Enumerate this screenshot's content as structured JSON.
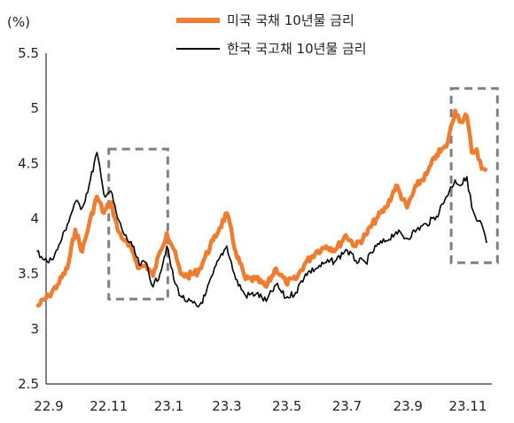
{
  "chart_data": {
    "type": "line",
    "unit_label": "(%)",
    "x_ticks": [
      "22.9",
      "22.11",
      "23.1",
      "23.3",
      "23.5",
      "23.7",
      "23.9",
      "23.11"
    ],
    "y_ticks": [
      "2.5",
      "3",
      "3.5",
      "4",
      "4.5",
      "5",
      "5.5"
    ],
    "ylim": [
      2.5,
      5.5
    ],
    "legend_position": "top-right",
    "series": [
      {
        "name": "미국 국채 10년물 금리",
        "color": "#ED7D31",
        "points": [
          [
            "22.8.20",
            3.2
          ],
          [
            "22.9.1",
            3.3
          ],
          [
            "22.9.10",
            3.4
          ],
          [
            "22.9.20",
            3.55
          ],
          [
            "22.9.28",
            3.9
          ],
          [
            "22.10.5",
            3.7
          ],
          [
            "22.10.12",
            3.95
          ],
          [
            "22.10.20",
            4.2
          ],
          [
            "22.10.27",
            4.05
          ],
          [
            "22.11.3",
            4.15
          ],
          [
            "22.11.10",
            3.9
          ],
          [
            "22.11.17",
            3.8
          ],
          [
            "22.11.25",
            3.7
          ],
          [
            "22.12.2",
            3.55
          ],
          [
            "22.12.9",
            3.58
          ],
          [
            "22.12.16",
            3.48
          ],
          [
            "22.12.23",
            3.7
          ],
          [
            "22.12.30",
            3.87
          ],
          [
            "23.1.6",
            3.72
          ],
          [
            "23.1.13",
            3.5
          ],
          [
            "23.1.20",
            3.48
          ],
          [
            "23.1.31",
            3.52
          ],
          [
            "23.2.7",
            3.65
          ],
          [
            "23.2.15",
            3.8
          ],
          [
            "23.2.22",
            3.92
          ],
          [
            "23.3.1",
            4.05
          ],
          [
            "23.3.10",
            3.7
          ],
          [
            "23.3.20",
            3.45
          ],
          [
            "23.3.31",
            3.45
          ],
          [
            "23.4.10",
            3.38
          ],
          [
            "23.4.20",
            3.55
          ],
          [
            "23.4.30",
            3.42
          ],
          [
            "23.5.10",
            3.45
          ],
          [
            "23.5.20",
            3.6
          ],
          [
            "23.5.31",
            3.7
          ],
          [
            "23.6.10",
            3.75
          ],
          [
            "23.6.20",
            3.72
          ],
          [
            "23.6.30",
            3.85
          ],
          [
            "23.7.10",
            3.75
          ],
          [
            "23.7.20",
            3.85
          ],
          [
            "23.7.31",
            4.0
          ],
          [
            "23.8.10",
            4.1
          ],
          [
            "23.8.20",
            4.3
          ],
          [
            "23.8.31",
            4.1
          ],
          [
            "23.9.10",
            4.3
          ],
          [
            "23.9.20",
            4.4
          ],
          [
            "23.9.30",
            4.58
          ],
          [
            "23.10.10",
            4.65
          ],
          [
            "23.10.19",
            4.98
          ],
          [
            "23.10.25",
            4.88
          ],
          [
            "23.10.31",
            4.93
          ],
          [
            "23.11.5",
            4.6
          ],
          [
            "23.11.10",
            4.63
          ],
          [
            "23.11.15",
            4.45
          ],
          [
            "23.11.20",
            4.43
          ]
        ]
      },
      {
        "name": "한국 국고채 10년물 금리",
        "color": "#000000",
        "points": [
          [
            "22.8.20",
            3.7
          ],
          [
            "22.9.1",
            3.6
          ],
          [
            "22.9.10",
            3.72
          ],
          [
            "22.9.20",
            3.95
          ],
          [
            "22.9.28",
            4.15
          ],
          [
            "22.10.5",
            4.1
          ],
          [
            "22.10.12",
            4.3
          ],
          [
            "22.10.20",
            4.6
          ],
          [
            "22.10.27",
            4.22
          ],
          [
            "22.11.3",
            4.25
          ],
          [
            "22.11.10",
            4.0
          ],
          [
            "22.11.17",
            3.85
          ],
          [
            "22.11.25",
            3.75
          ],
          [
            "22.12.2",
            3.58
          ],
          [
            "22.12.9",
            3.6
          ],
          [
            "22.12.16",
            3.38
          ],
          [
            "22.12.23",
            3.5
          ],
          [
            "22.12.30",
            3.75
          ],
          [
            "23.1.6",
            3.45
          ],
          [
            "23.1.13",
            3.3
          ],
          [
            "23.1.20",
            3.25
          ],
          [
            "23.1.31",
            3.2
          ],
          [
            "23.2.7",
            3.3
          ],
          [
            "23.2.15",
            3.5
          ],
          [
            "23.2.22",
            3.65
          ],
          [
            "23.3.1",
            3.75
          ],
          [
            "23.3.10",
            3.45
          ],
          [
            "23.3.20",
            3.3
          ],
          [
            "23.3.31",
            3.32
          ],
          [
            "23.4.10",
            3.25
          ],
          [
            "23.4.20",
            3.4
          ],
          [
            "23.4.30",
            3.28
          ],
          [
            "23.5.10",
            3.33
          ],
          [
            "23.5.20",
            3.5
          ],
          [
            "23.5.31",
            3.55
          ],
          [
            "23.6.10",
            3.6
          ],
          [
            "23.6.20",
            3.62
          ],
          [
            "23.6.30",
            3.72
          ],
          [
            "23.7.10",
            3.62
          ],
          [
            "23.7.20",
            3.6
          ],
          [
            "23.7.31",
            3.75
          ],
          [
            "23.8.10",
            3.8
          ],
          [
            "23.8.20",
            3.88
          ],
          [
            "23.8.31",
            3.82
          ],
          [
            "23.9.10",
            3.9
          ],
          [
            "23.9.20",
            3.95
          ],
          [
            "23.9.30",
            4.02
          ],
          [
            "23.10.10",
            4.2
          ],
          [
            "23.10.19",
            4.35
          ],
          [
            "23.10.25",
            4.3
          ],
          [
            "23.10.31",
            4.38
          ],
          [
            "23.11.5",
            4.1
          ],
          [
            "23.11.10",
            3.98
          ],
          [
            "23.11.15",
            3.95
          ],
          [
            "23.11.20",
            3.78
          ]
        ]
      }
    ],
    "annotations": [
      {
        "type": "dashed-box",
        "x_range": [
          "22.11.1",
          "22.12.31"
        ],
        "y_range": [
          3.27,
          4.63
        ],
        "color": "#808080"
      },
      {
        "type": "dashed-box",
        "x_range": [
          "23.10.15",
          "23.12.1"
        ],
        "y_range": [
          3.6,
          5.18
        ],
        "color": "#808080"
      }
    ]
  }
}
